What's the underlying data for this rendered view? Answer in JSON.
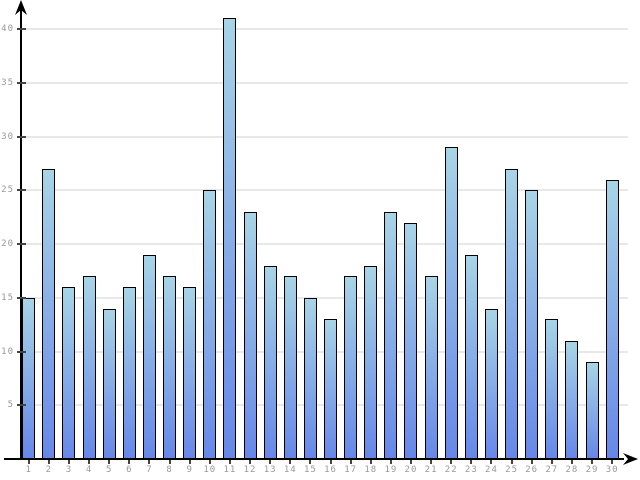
{
  "chart_data": {
    "type": "bar",
    "title": "",
    "xlabel": "",
    "ylabel": "",
    "categories": [
      "1",
      "2",
      "3",
      "4",
      "5",
      "6",
      "7",
      "8",
      "9",
      "10",
      "11",
      "12",
      "13",
      "14",
      "15",
      "16",
      "17",
      "18",
      "19",
      "20",
      "21",
      "22",
      "23",
      "24",
      "25",
      "26",
      "27",
      "28",
      "29",
      "30"
    ],
    "values": [
      15,
      27,
      16,
      17,
      14,
      16,
      19,
      17,
      16,
      25,
      41,
      23,
      18,
      17,
      15,
      13,
      17,
      18,
      23,
      22,
      17,
      29,
      19,
      14,
      27,
      25,
      13,
      11,
      9,
      26
    ],
    "yticks": [
      5,
      10,
      15,
      20,
      25,
      30,
      35,
      40
    ],
    "ylim": [
      0,
      42
    ],
    "grid": true,
    "legend": false,
    "colors": {
      "bar_gradient_top": "#a8d4e6",
      "bar_gradient_bottom": "#6687e8",
      "bar_border": "#000000",
      "gridline": "#e8e8e8",
      "axis": "#000000",
      "tick_label": "#999999",
      "background": "#ffffff"
    }
  }
}
